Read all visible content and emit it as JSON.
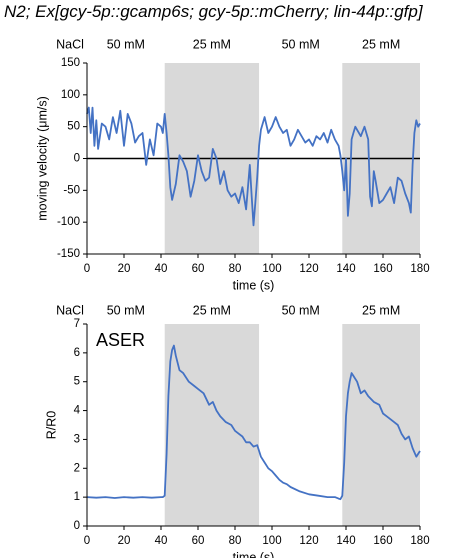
{
  "figure": {
    "title": "N2; Ex[gcy-5p::gcamp6s; gcy-5p::mCherry; lin-44p::gfp]"
  },
  "colors": {
    "trace": "#4472C4",
    "shade": "#D9D9D9",
    "axis": "#000000"
  },
  "chart_data": [
    {
      "type": "line",
      "stimulus_label": "NaCl",
      "stimulus_periods": [
        {
          "label": "50 mM",
          "x_start": 0,
          "x_end": 42,
          "shaded": false
        },
        {
          "label": "25 mM",
          "x_start": 42,
          "x_end": 93,
          "shaded": true
        },
        {
          "label": "50 mM",
          "x_start": 93,
          "x_end": 138,
          "shaded": false
        },
        {
          "label": "25 mM",
          "x_start": 138,
          "x_end": 180,
          "shaded": true
        }
      ],
      "xlabel": "time (s)",
      "ylabel": "moving velocity (μm/s)",
      "xlim": [
        0,
        180
      ],
      "ylim": [
        -150,
        150
      ],
      "xticks": [
        0,
        20,
        40,
        60,
        80,
        100,
        120,
        140,
        160,
        180
      ],
      "yticks": [
        -150,
        -100,
        -50,
        0,
        50,
        100,
        150
      ],
      "reference_line_y": 0,
      "series": [
        {
          "x": [
            0,
            1,
            2,
            3,
            4,
            5,
            6,
            8,
            10,
            12,
            14,
            16,
            18,
            20,
            22,
            24,
            26,
            28,
            30,
            32,
            34,
            36,
            38,
            40,
            41,
            42,
            43,
            44,
            45,
            46,
            48,
            50,
            52,
            54,
            56,
            58,
            60,
            62,
            64,
            66,
            68,
            70,
            72,
            74,
            76,
            78,
            80,
            82,
            84,
            86,
            88,
            89,
            90,
            91,
            92,
            93,
            94,
            96,
            98,
            100,
            102,
            104,
            106,
            108,
            110,
            112,
            114,
            116,
            118,
            120,
            122,
            124,
            126,
            128,
            130,
            132,
            134,
            136,
            137,
            138,
            139,
            140,
            141,
            142,
            143,
            144,
            145,
            146,
            148,
            150,
            152,
            153,
            154,
            155,
            156,
            158,
            160,
            162,
            164,
            166,
            168,
            170,
            172,
            174,
            175,
            176,
            177,
            178,
            179,
            180
          ],
          "y": [
            70,
            80,
            40,
            80,
            20,
            60,
            15,
            55,
            50,
            30,
            65,
            40,
            75,
            20,
            70,
            55,
            25,
            35,
            40,
            -10,
            30,
            5,
            55,
            50,
            40,
            70,
            40,
            5,
            -45,
            -65,
            -40,
            5,
            -5,
            -20,
            -60,
            -35,
            5,
            -20,
            -35,
            -30,
            15,
            0,
            -40,
            -20,
            -50,
            -60,
            -55,
            -70,
            -45,
            -80,
            -10,
            -60,
            -105,
            -70,
            -30,
            20,
            45,
            65,
            40,
            50,
            65,
            50,
            40,
            45,
            20,
            30,
            45,
            35,
            25,
            30,
            20,
            35,
            30,
            40,
            25,
            45,
            30,
            20,
            5,
            -20,
            -50,
            0,
            -90,
            -55,
            30,
            40,
            50,
            45,
            35,
            50,
            30,
            -60,
            -75,
            -20,
            -35,
            -70,
            -65,
            -55,
            -45,
            -70,
            -30,
            -35,
            -55,
            -70,
            -85,
            -10,
            40,
            60,
            50,
            55
          ]
        }
      ]
    },
    {
      "type": "line",
      "stimulus_label": "NaCl",
      "panel_label": "ASER",
      "stimulus_periods": [
        {
          "label": "50 mM",
          "x_start": 0,
          "x_end": 42,
          "shaded": false
        },
        {
          "label": "25 mM",
          "x_start": 42,
          "x_end": 93,
          "shaded": true
        },
        {
          "label": "50 mM",
          "x_start": 93,
          "x_end": 138,
          "shaded": false
        },
        {
          "label": "25 mM",
          "x_start": 138,
          "x_end": 180,
          "shaded": true
        }
      ],
      "xlabel": "time (s)",
      "ylabel": "R/R0",
      "xlim": [
        0,
        180
      ],
      "ylim": [
        0,
        7
      ],
      "xticks": [
        0,
        20,
        40,
        60,
        80,
        100,
        120,
        140,
        160,
        180
      ],
      "yticks": [
        0,
        1,
        2,
        3,
        4,
        5,
        6,
        7
      ],
      "series": [
        {
          "x": [
            0,
            5,
            10,
            15,
            20,
            25,
            30,
            35,
            40,
            41,
            42,
            43,
            44,
            45,
            46,
            47,
            48,
            50,
            52,
            55,
            58,
            60,
            63,
            66,
            68,
            70,
            72,
            75,
            78,
            80,
            82,
            84,
            86,
            88,
            90,
            92,
            93,
            94,
            96,
            98,
            100,
            102,
            104,
            106,
            108,
            110,
            115,
            120,
            125,
            130,
            134,
            136,
            137,
            138,
            139,
            140,
            141,
            142,
            143,
            144,
            146,
            148,
            150,
            152,
            155,
            158,
            160,
            162,
            164,
            166,
            168,
            170,
            172,
            174,
            176,
            178,
            180
          ],
          "y": [
            1.0,
            0.98,
            1.0,
            0.97,
            1.0,
            0.98,
            1.0,
            0.98,
            1.0,
            1.0,
            1.05,
            2.5,
            4.5,
            5.7,
            6.1,
            6.25,
            5.9,
            5.4,
            5.3,
            5.0,
            4.85,
            4.75,
            4.6,
            4.2,
            4.3,
            4.0,
            3.8,
            3.6,
            3.5,
            3.3,
            3.2,
            3.1,
            2.9,
            2.9,
            2.75,
            2.8,
            2.6,
            2.4,
            2.2,
            2.0,
            1.9,
            1.75,
            1.6,
            1.5,
            1.45,
            1.35,
            1.2,
            1.1,
            1.05,
            1.0,
            1.0,
            0.95,
            0.93,
            1.05,
            2.2,
            3.8,
            4.6,
            5.0,
            5.3,
            5.2,
            5.0,
            4.6,
            4.7,
            4.5,
            4.3,
            4.2,
            3.9,
            3.8,
            3.7,
            3.6,
            3.5,
            3.2,
            3.0,
            3.1,
            2.7,
            2.4,
            2.6
          ]
        }
      ]
    }
  ]
}
